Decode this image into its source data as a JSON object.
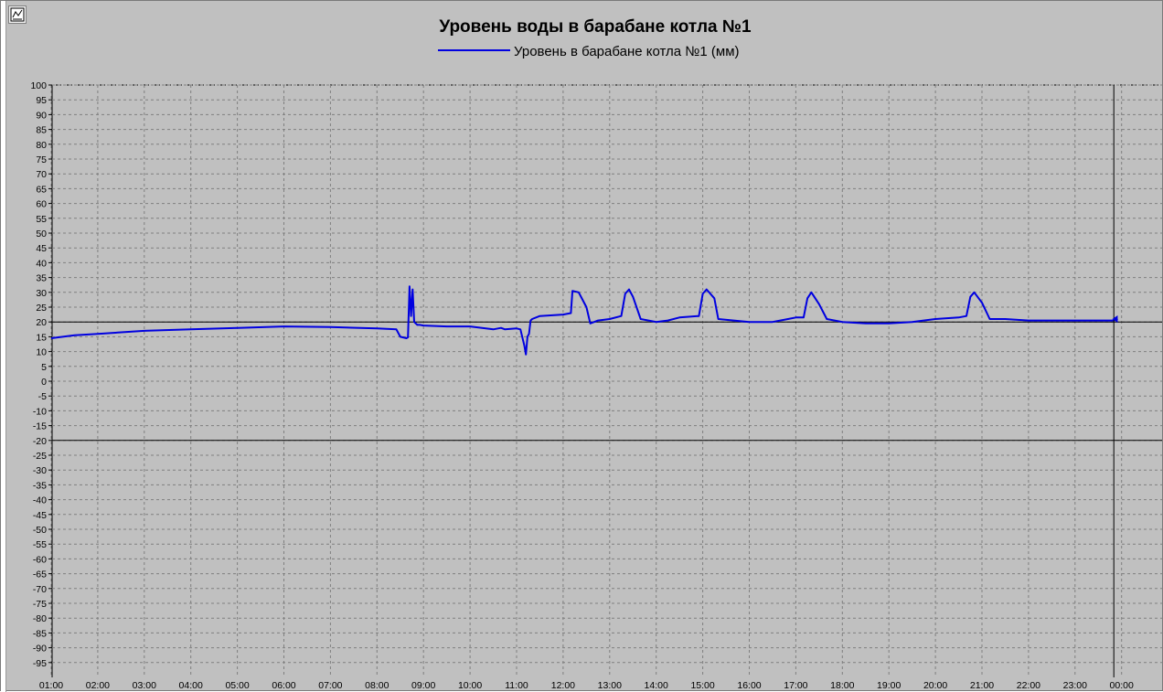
{
  "colors": {
    "background": "#c0c0c0",
    "series": "#0000e0",
    "grid": "#7f7f7f",
    "limit_line": "#000000"
  },
  "toolbar": {
    "chart_icon": "chart-icon"
  },
  "chart_data": {
    "type": "line",
    "title": "Уровень воды в барабане котла №1",
    "legend": "top-center",
    "grid": true,
    "xlabel": "",
    "ylabel": "",
    "ylim": [
      -100,
      100
    ],
    "yticks": [
      100,
      95,
      90,
      85,
      80,
      75,
      70,
      65,
      60,
      55,
      50,
      45,
      40,
      35,
      30,
      25,
      20,
      15,
      10,
      5,
      0,
      -5,
      -10,
      -15,
      -20,
      -25,
      -30,
      -35,
      -40,
      -45,
      -50,
      -55,
      -60,
      -65,
      -70,
      -75,
      -80,
      -85,
      -90,
      -95
    ],
    "xticks": [
      "01:00",
      "02:00",
      "03:00",
      "04:00",
      "05:00",
      "06:00",
      "07:00",
      "08:00",
      "09:00",
      "10:00",
      "11:00",
      "12:00",
      "13:00",
      "14:00",
      "15:00",
      "16:00",
      "17:00",
      "18:00",
      "19:00",
      "20:00",
      "21:00",
      "22:00",
      "23:00",
      "00:00"
    ],
    "limit_lines": [
      20,
      -20
    ],
    "cursor_time": "23:50",
    "series": [
      {
        "name": "Уровень в барабане котла №1 (мм)",
        "x": [
          "01:00",
          "01:30",
          "02:00",
          "03:00",
          "04:00",
          "05:00",
          "06:00",
          "07:00",
          "08:00",
          "08:25",
          "08:30",
          "08:38",
          "08:40",
          "08:42",
          "08:44",
          "08:46",
          "08:48",
          "08:50",
          "08:52",
          "08:55",
          "09:00",
          "09:30",
          "10:00",
          "10:30",
          "10:40",
          "10:45",
          "11:00",
          "11:05",
          "11:10",
          "11:12",
          "11:14",
          "11:16",
          "11:18",
          "11:20",
          "11:30",
          "12:00",
          "12:10",
          "12:12",
          "12:20",
          "12:30",
          "12:35",
          "12:45",
          "13:00",
          "13:15",
          "13:20",
          "13:25",
          "13:30",
          "13:40",
          "14:00",
          "14:15",
          "14:30",
          "14:55",
          "15:00",
          "15:05",
          "15:15",
          "15:20",
          "15:40",
          "16:00",
          "16:30",
          "16:50",
          "17:00",
          "17:10",
          "17:15",
          "17:20",
          "17:30",
          "17:40",
          "18:00",
          "18:30",
          "19:00",
          "19:30",
          "20:00",
          "20:30",
          "20:40",
          "20:45",
          "20:50",
          "21:00",
          "21:10",
          "21:30",
          "22:00",
          "22:30",
          "23:00",
          "23:30",
          "23:50",
          "23:55"
        ],
        "y": [
          14.5,
          15.5,
          16.0,
          17.0,
          17.5,
          18.0,
          18.5,
          18.3,
          17.8,
          17.5,
          15.0,
          14.5,
          14.8,
          32.0,
          22.0,
          31.0,
          20.0,
          19.5,
          19.0,
          19.0,
          18.8,
          18.5,
          18.5,
          17.5,
          18.0,
          17.5,
          17.8,
          17.5,
          12.0,
          9.0,
          15.0,
          16.0,
          20.5,
          21.0,
          22.0,
          22.5,
          23.0,
          30.5,
          30.0,
          25.0,
          19.5,
          20.5,
          21.0,
          22.0,
          29.5,
          31.0,
          28.5,
          21.0,
          20.0,
          20.5,
          21.5,
          22.0,
          29.5,
          31.0,
          28.0,
          21.0,
          20.5,
          20.0,
          20.0,
          21.0,
          21.5,
          21.5,
          28.0,
          30.0,
          26.0,
          21.0,
          20.0,
          19.5,
          19.5,
          20.0,
          21.0,
          21.5,
          22.0,
          28.5,
          30.0,
          26.5,
          21.0,
          21.0,
          20.5,
          20.5,
          20.5,
          20.5,
          20.5,
          21.0
        ]
      }
    ]
  }
}
